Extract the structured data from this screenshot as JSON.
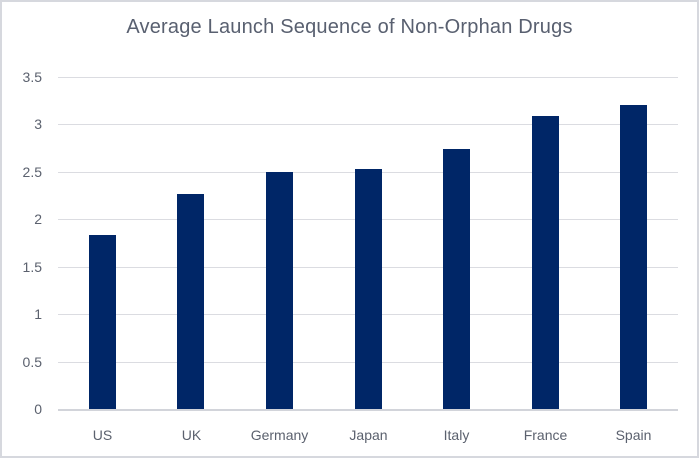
{
  "chart_data": {
    "type": "bar",
    "title": "Average Launch Sequence of Non-Orphan Drugs",
    "categories": [
      "US",
      "UK",
      "Germany",
      "Japan",
      "Italy",
      "France",
      "Spain"
    ],
    "values": [
      1.83,
      2.27,
      2.5,
      2.53,
      2.74,
      3.09,
      3.21
    ],
    "xlabel": "",
    "ylabel": "",
    "ylim": [
      0,
      3.5
    ],
    "ytick_step": 0.5,
    "ytick_labels": [
      "3.5",
      "3",
      "2.5",
      "2",
      "1.5",
      "1",
      "0.5",
      "0"
    ],
    "grid": true,
    "legend": false,
    "colors": {
      "bar": "#002667",
      "gridline": "#dbdce1",
      "axis_line": "#d2d4da",
      "text": "#5b616e",
      "title_text": "#596070",
      "frame_border": "#d6d8de",
      "background": "#ffffff"
    }
  }
}
